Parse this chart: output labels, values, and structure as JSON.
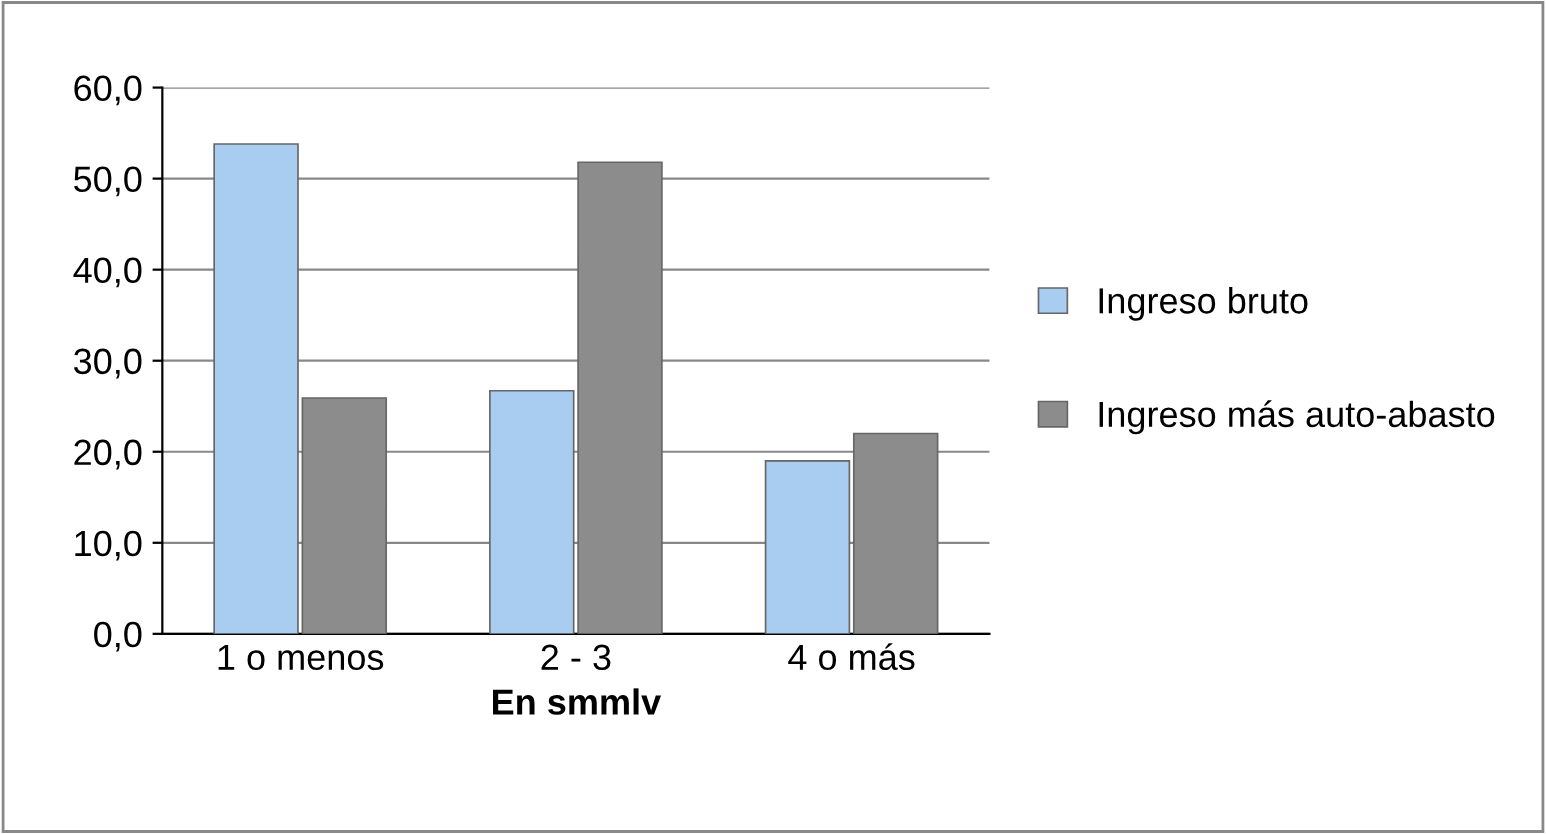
{
  "chart_data": {
    "type": "bar",
    "xlabel": "En smmlv",
    "categories": [
      "1 o menos",
      "2 - 3",
      "4 o más"
    ],
    "series": [
      {
        "name": "Ingreso bruto",
        "color": "#a9cdf0",
        "values": [
          53.8,
          26.7,
          19.0
        ]
      },
      {
        "name": "Ingreso más auto-abasto",
        "color": "#8c8c8c",
        "values": [
          25.9,
          51.8,
          22.0
        ]
      }
    ],
    "ylim": [
      0,
      60
    ],
    "yticks": [
      {
        "value": 0,
        "label": "0,0"
      },
      {
        "value": 10,
        "label": "10,0"
      },
      {
        "value": 20,
        "label": "20,0"
      },
      {
        "value": 30,
        "label": "30,0"
      },
      {
        "value": 40,
        "label": "40,0"
      },
      {
        "value": 50,
        "label": "50,0"
      },
      {
        "value": 60,
        "label": "60,0"
      }
    ],
    "grid": "y",
    "legend": "right"
  }
}
